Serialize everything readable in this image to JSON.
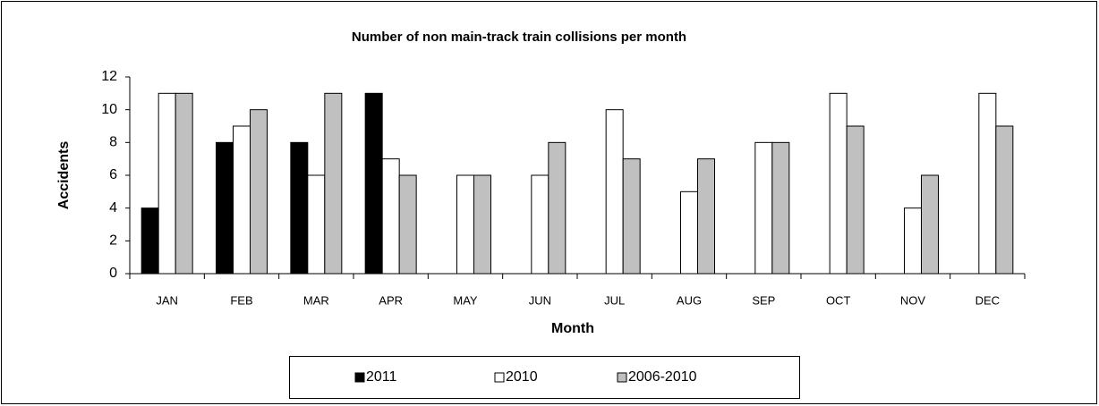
{
  "chart_data": {
    "type": "bar",
    "title": "Number of non main-track train collisions per month",
    "x_label": "Month",
    "y_label": "Accidents",
    "categories": [
      "JAN",
      "FEB",
      "MAR",
      "APR",
      "MAY",
      "JUN",
      "JUL",
      "AUG",
      "SEP",
      "OCT",
      "NOV",
      "DEC"
    ],
    "series": [
      {
        "name": "2011",
        "color": "#000000",
        "values": [
          4,
          8,
          8,
          11,
          null,
          null,
          null,
          null,
          null,
          null,
          null,
          null
        ]
      },
      {
        "name": "2010",
        "color": "#ffffff",
        "values": [
          11,
          9,
          6,
          7,
          6,
          6,
          10,
          5,
          8,
          11,
          4,
          11
        ]
      },
      {
        "name": "2006-2010",
        "color": "#c0c0c0",
        "values": [
          11,
          10,
          11,
          6,
          6,
          8,
          7,
          7,
          8,
          9,
          6,
          9
        ]
      }
    ],
    "ylim": [
      0,
      12
    ],
    "yticks": [
      0,
      2,
      4,
      6,
      8,
      10,
      12
    ],
    "grid": false,
    "legend": "bottom"
  }
}
